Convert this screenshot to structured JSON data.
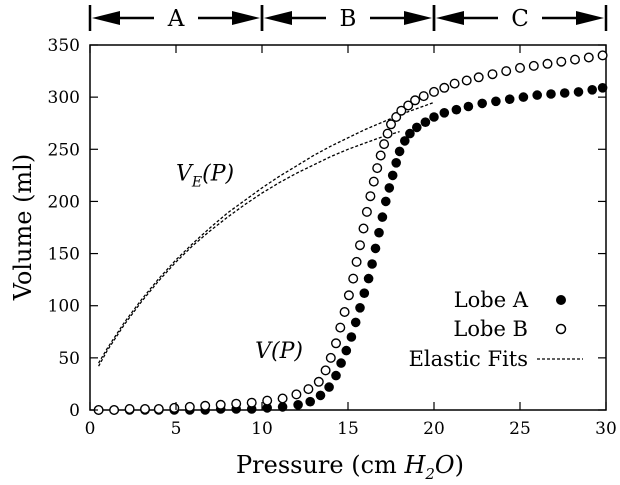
{
  "chart_data": {
    "type": "scatter",
    "title": "",
    "xlabel": "Pressure (cm H2O)",
    "xlabel_parts": {
      "prefix": "Pressure (cm ",
      "H": "H",
      "sub": "2",
      "O": "O",
      "suffix": ")"
    },
    "ylabel": "Volume (ml)",
    "xlim": [
      0,
      30
    ],
    "ylim": [
      0,
      350
    ],
    "xticks": [
      0,
      5,
      10,
      15,
      20,
      25,
      30
    ],
    "yticks": [
      0,
      50,
      100,
      150,
      200,
      250,
      300,
      350
    ],
    "grid": false,
    "legend_position": "bottom-right",
    "legend": {
      "lobe_a": "Lobe A",
      "lobe_b": "Lobe B",
      "fits": "Elastic Fits"
    },
    "regions": [
      {
        "label": "A",
        "from": 0,
        "to": 10
      },
      {
        "label": "B",
        "from": 10,
        "to": 20
      },
      {
        "label": "C",
        "from": 20,
        "to": 30
      }
    ],
    "annotations": {
      "ve": {
        "V": "V",
        "E": "E",
        "P": "(P)",
        "x": 5.0,
        "y": 220
      },
      "vp": {
        "V": "V",
        "P": "(P)",
        "x": 9.6,
        "y": 50
      }
    },
    "series": [
      {
        "name": "Lobe A",
        "marker": "filled-circle",
        "x": [
          0.5,
          1.4,
          2.3,
          3.2,
          4.0,
          4.9,
          5.8,
          6.7,
          7.6,
          8.5,
          9.4,
          10.3,
          11.2,
          12.1,
          12.8,
          13.4,
          13.9,
          14.3,
          14.6,
          14.9,
          15.2,
          15.45,
          15.7,
          15.95,
          16.2,
          16.4,
          16.6,
          16.8,
          17.0,
          17.2,
          17.4,
          17.6,
          17.8,
          18.0,
          18.3,
          18.6,
          19.0,
          19.5,
          20.0,
          20.6,
          21.3,
          22.0,
          22.8,
          23.6,
          24.4,
          25.2,
          26.0,
          26.8,
          27.6,
          28.4,
          29.2,
          29.8
        ],
        "y": [
          0,
          0,
          0,
          0,
          0,
          0,
          0,
          0,
          1,
          1,
          1,
          2,
          3,
          5,
          8,
          14,
          22,
          33,
          45,
          57,
          70,
          84,
          98,
          112,
          126,
          140,
          155,
          170,
          185,
          200,
          213,
          225,
          237,
          248,
          258,
          265,
          271,
          276,
          281,
          285,
          288,
          291,
          294,
          296,
          298,
          300,
          302,
          303,
          304,
          305,
          307,
          309
        ]
      },
      {
        "name": "Lobe B",
        "marker": "open-circle",
        "x": [
          0.5,
          1.4,
          2.3,
          3.2,
          4.0,
          4.9,
          5.8,
          6.7,
          7.6,
          8.5,
          9.4,
          10.3,
          11.2,
          12.0,
          12.7,
          13.3,
          13.7,
          14.0,
          14.3,
          14.55,
          14.8,
          15.05,
          15.3,
          15.5,
          15.7,
          15.9,
          16.1,
          16.3,
          16.5,
          16.7,
          16.9,
          17.1,
          17.3,
          17.5,
          17.8,
          18.1,
          18.5,
          18.9,
          19.4,
          20.0,
          20.6,
          21.2,
          21.9,
          22.6,
          23.4,
          24.2,
          25.0,
          25.8,
          26.6,
          27.4,
          28.2,
          29.0,
          29.8
        ],
        "y": [
          0,
          0,
          1,
          1,
          1,
          2,
          3,
          4,
          5,
          6,
          7,
          9,
          11,
          15,
          20,
          27,
          38,
          50,
          64,
          79,
          94,
          110,
          126,
          142,
          158,
          174,
          190,
          205,
          219,
          232,
          244,
          255,
          265,
          274,
          281,
          287,
          292,
          297,
          301,
          305,
          309,
          313,
          316,
          319,
          322,
          325,
          328,
          330,
          332,
          334,
          336,
          338,
          340
        ]
      },
      {
        "name": "Elastic Fits",
        "marker": "dashed-line",
        "curves": [
          {
            "x": [
              0.5,
              1,
              2,
              3,
              4,
              5,
              6,
              7,
              8,
              9,
              10,
              11,
              12,
              13,
              14,
              15,
              16,
              17,
              18
            ],
            "y": [
              42,
              57,
              82,
              104,
              124,
              142,
              158,
              172,
              185,
              197,
              208,
              218,
              227,
              235,
              243,
              250,
              256,
              262,
              267
            ]
          },
          {
            "x": [
              0.5,
              1,
              2,
              3,
              4,
              5,
              6,
              7,
              8,
              9,
              10,
              11,
              12,
              13,
              14,
              15,
              16,
              17,
              18,
              19,
              20
            ],
            "y": [
              45,
              59,
              84,
              106,
              126,
              144,
              160,
              175,
              189,
              201,
              213,
              224,
              234,
              244,
              253,
              261,
              269,
              276,
              283,
              289,
              295
            ]
          }
        ]
      }
    ]
  }
}
